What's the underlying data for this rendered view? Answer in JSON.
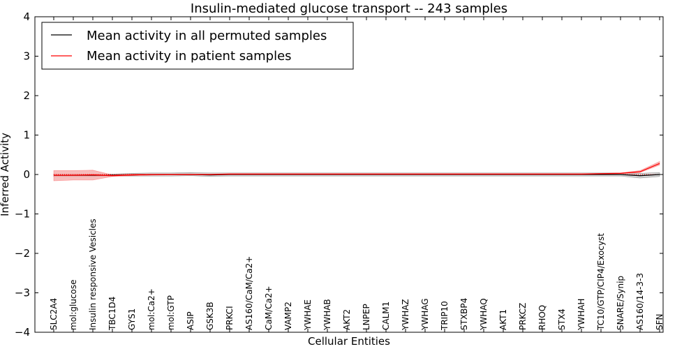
{
  "chart_data": {
    "type": "line",
    "title": "Insulin-mediated glucose transport -- 243 samples",
    "xlabel": "Cellular Entities",
    "ylabel": "Inferred Activity",
    "ylim": [
      -4,
      4
    ],
    "yticks": [
      -4,
      -3,
      -2,
      -1,
      0,
      1,
      2,
      3,
      4
    ],
    "ytick_labels": [
      "−4",
      "−3",
      "−2",
      "−1",
      "0",
      "1",
      "2",
      "3",
      "4"
    ],
    "grid": false,
    "legend_position": "top-left",
    "categories": [
      "SLC2A4",
      "mol:glucose",
      "Insulin responsive Vesicles",
      "TBC1D4",
      "GYS1",
      "mol:Ca2+",
      "mol:GTP",
      "ASIP",
      "GSK3B",
      "PRKCI",
      "AS160/CaM/Ca2+",
      "CaM/Ca2+",
      "VAMP2",
      "YWHAE",
      "YWHAB",
      "AKT2",
      "LNPEP",
      "CALM1",
      "YWHAZ",
      "YWHAG",
      "TRIP10",
      "STXBP4",
      "YWHAQ",
      "AKT1",
      "PRKCZ",
      "RHOQ",
      "STX4",
      "YWHAH",
      "TC10/GTP/CIP4/Exocyst",
      "SNARE/Synip",
      "AS160/14-3-3",
      "SFN"
    ],
    "series": [
      {
        "name": "Mean activity in all permuted samples",
        "color": "#000000",
        "band_color": "#bbbbbb",
        "values": [
          -0.02,
          -0.02,
          -0.02,
          -0.02,
          -0.01,
          0.0,
          0.0,
          0.0,
          -0.01,
          0.0,
          0.0,
          0.0,
          0.0,
          0.0,
          0.0,
          0.0,
          0.0,
          0.0,
          0.0,
          0.0,
          0.0,
          0.0,
          0.0,
          0.0,
          0.0,
          0.0,
          0.0,
          0.0,
          0.0,
          0.0,
          -0.03,
          0.0
        ],
        "lower": [
          -0.05,
          -0.05,
          -0.05,
          -0.04,
          -0.04,
          -0.04,
          -0.04,
          -0.03,
          -0.05,
          -0.04,
          -0.04,
          -0.04,
          -0.04,
          -0.04,
          -0.04,
          -0.04,
          -0.04,
          -0.04,
          -0.04,
          -0.04,
          -0.04,
          -0.04,
          -0.04,
          -0.04,
          -0.04,
          -0.04,
          -0.04,
          -0.04,
          -0.04,
          -0.04,
          -0.09,
          -0.05
        ],
        "upper": [
          0.01,
          0.01,
          0.01,
          0.01,
          0.03,
          0.04,
          0.04,
          0.05,
          0.04,
          0.04,
          0.04,
          0.04,
          0.04,
          0.04,
          0.04,
          0.04,
          0.04,
          0.04,
          0.04,
          0.04,
          0.04,
          0.04,
          0.04,
          0.04,
          0.04,
          0.04,
          0.04,
          0.04,
          0.04,
          0.04,
          0.03,
          0.05
        ]
      },
      {
        "name": "Mean activity in patient samples",
        "color": "#ff0000",
        "band_color": "#f4a5a5",
        "values": [
          -0.02,
          -0.02,
          -0.01,
          -0.03,
          -0.01,
          0.0,
          0.0,
          0.0,
          0.0,
          0.01,
          0.01,
          0.01,
          0.01,
          0.01,
          0.01,
          0.01,
          0.01,
          0.01,
          0.01,
          0.01,
          0.01,
          0.01,
          0.01,
          0.01,
          0.01,
          0.01,
          0.01,
          0.01,
          0.02,
          0.03,
          0.07,
          0.28
        ],
        "lower": [
          -0.16,
          -0.14,
          -0.14,
          -0.05,
          -0.03,
          -0.02,
          -0.01,
          -0.01,
          -0.01,
          0.0,
          0.0,
          0.0,
          0.0,
          0.0,
          0.0,
          0.0,
          0.0,
          0.0,
          0.0,
          0.0,
          0.0,
          0.0,
          0.0,
          0.0,
          0.0,
          0.0,
          0.0,
          0.0,
          0.01,
          0.02,
          0.05,
          0.24
        ],
        "upper": [
          0.1,
          0.1,
          0.11,
          -0.01,
          0.01,
          0.01,
          0.01,
          0.01,
          0.01,
          0.02,
          0.02,
          0.02,
          0.02,
          0.02,
          0.02,
          0.02,
          0.02,
          0.02,
          0.02,
          0.02,
          0.02,
          0.02,
          0.02,
          0.02,
          0.02,
          0.02,
          0.02,
          0.02,
          0.03,
          0.04,
          0.1,
          0.33
        ]
      }
    ],
    "reference_line": {
      "y": 0,
      "style": "dotted",
      "color": "#ff0000"
    }
  }
}
